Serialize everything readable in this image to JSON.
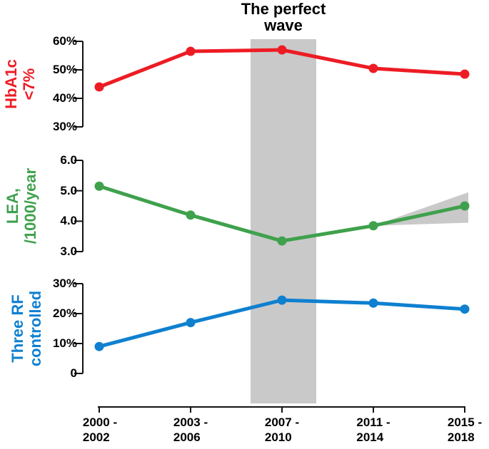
{
  "chart_data": {
    "type": "line",
    "title": "The perfect wave",
    "title_lines": [
      "The perfect",
      "wave"
    ],
    "grid": false,
    "legend": "none",
    "annotation": {
      "band_label": "The perfect wave",
      "band_category": "2007 - 2010"
    },
    "colors": {
      "band": "#c9c9c9",
      "axis": "#121212"
    },
    "x_categories": [
      [
        "2000 -",
        "2002"
      ],
      [
        "2003 -",
        "2006"
      ],
      [
        "2007 -",
        "2010"
      ],
      [
        "2011 -",
        "2014"
      ],
      [
        "2015 -",
        "2018"
      ]
    ],
    "panels": [
      {
        "name": "HbA1c <7%",
        "label_lines": [
          "HbA1c",
          "<7%"
        ],
        "color": "#ed1c24",
        "ylim": [
          30,
          60
        ],
        "tick_labels": [
          "60%",
          "50%",
          "40%",
          "30%"
        ],
        "tick_values": [
          60,
          50,
          40,
          30
        ],
        "values": [
          44,
          56.5,
          57,
          50.5,
          48.5
        ]
      },
      {
        "name": "LEA, /1000/year",
        "label_lines": [
          "LEA,",
          "/1000/year"
        ],
        "color": "#3fa14d",
        "ylim": [
          3,
          6
        ],
        "tick_labels": [
          "6.0",
          "5.0",
          "4.0",
          "3.0"
        ],
        "tick_values": [
          6,
          5,
          4,
          3
        ],
        "values": [
          5.15,
          4.2,
          3.35,
          3.85,
          4.5
        ],
        "projection_wedge": {
          "start_category_index": 3,
          "end_category_index": 4,
          "upper_value": 4.95,
          "lower_value": 3.95
        }
      },
      {
        "name": "Three RF controlled",
        "label_lines": [
          "Three RF",
          "controlled"
        ],
        "color": "#0f80d0",
        "ylim": [
          0,
          30
        ],
        "tick_labels": [
          "30%",
          "20%",
          "10%",
          "0"
        ],
        "tick_values": [
          30,
          20,
          10,
          0
        ],
        "values": [
          9,
          17,
          24.5,
          23.5,
          21.5
        ]
      }
    ]
  }
}
